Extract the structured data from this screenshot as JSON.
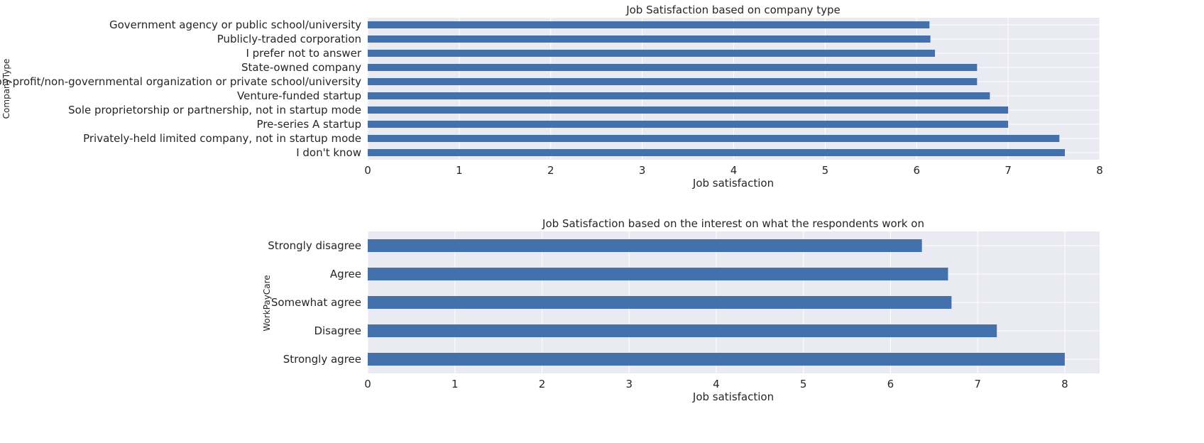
{
  "style": {
    "plot_bg": "#eaeaf2",
    "bar_color": "#4470ac",
    "grid_color": "#ffffff",
    "text_color": "#262626"
  },
  "chart_data": [
    {
      "type": "bar",
      "orientation": "horizontal",
      "title": "Job Satisfaction based on company type",
      "xlabel": "Job satisfaction",
      "ylabel": "CompanyType",
      "xlim": [
        0,
        8
      ],
      "xticks": [
        0,
        1,
        2,
        3,
        4,
        5,
        6,
        7,
        8
      ],
      "grid": true,
      "categories": [
        "Government agency or public school/university",
        "Publicly-traded corporation",
        "I prefer not to answer",
        "State-owned company",
        "Non-profit/non-governmental organization or private school/university",
        "Venture-funded startup",
        "Sole proprietorship or partnership, not in startup mode",
        "Pre-series A startup",
        "Privately-held limited company, not in startup mode",
        "I don't know"
      ],
      "values": [
        6.14,
        6.15,
        6.2,
        6.66,
        6.66,
        6.8,
        7.0,
        7.0,
        7.56,
        7.62
      ]
    },
    {
      "type": "bar",
      "orientation": "horizontal",
      "title": "Job Satisfaction based on the interest on what the respondents work on",
      "xlabel": "Job satisfaction",
      "ylabel": "WorkPayCare",
      "xlim": [
        0,
        8.4
      ],
      "xticks": [
        0,
        1,
        2,
        3,
        4,
        5,
        6,
        7,
        8
      ],
      "grid": true,
      "categories": [
        "Strongly disagree",
        "Agree",
        "Somewhat agree",
        "Disagree",
        "Strongly agree"
      ],
      "values": [
        6.36,
        6.66,
        6.7,
        7.22,
        8.0
      ]
    }
  ]
}
